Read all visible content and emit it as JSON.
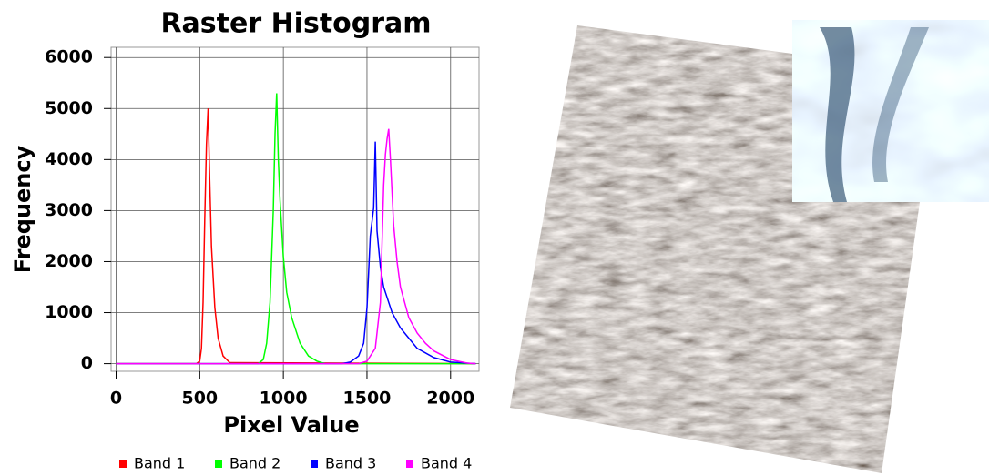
{
  "chart_data": {
    "type": "line",
    "title": "Raster Histogram",
    "x_label": "Pixel Value",
    "y_label": "Frequency",
    "xlim": [
      -30,
      2170
    ],
    "ylim": [
      -150,
      6200
    ],
    "xticks": [
      0,
      500,
      1000,
      1500,
      2000
    ],
    "yticks": [
      0,
      1000,
      2000,
      3000,
      4000,
      5000,
      6000
    ],
    "grid": true,
    "legend": "bottom",
    "series": [
      {
        "name": "Band 1",
        "color": "#ff0000",
        "x": [
          0,
          480,
          500,
          510,
          520,
          530,
          540,
          550,
          560,
          570,
          590,
          610,
          640,
          680,
          2150
        ],
        "values": [
          0,
          0,
          50,
          300,
          1200,
          2800,
          4300,
          5000,
          3600,
          2300,
          1100,
          500,
          150,
          20,
          0
        ]
      },
      {
        "name": "Band 2",
        "color": "#00ff00",
        "x": [
          0,
          850,
          880,
          900,
          920,
          940,
          950,
          960,
          970,
          980,
          1000,
          1020,
          1050,
          1100,
          1150,
          1200,
          1250,
          2150
        ],
        "values": [
          0,
          0,
          80,
          400,
          1200,
          3000,
          4500,
          5300,
          4000,
          3200,
          2100,
          1400,
          900,
          400,
          150,
          50,
          0,
          0
        ]
      },
      {
        "name": "Band 3",
        "color": "#0000ff",
        "x": [
          0,
          1350,
          1400,
          1450,
          1480,
          1500,
          1520,
          1540,
          1550,
          1560,
          1580,
          1600,
          1650,
          1700,
          1750,
          1800,
          1900,
          2000,
          2150
        ],
        "values": [
          0,
          0,
          30,
          150,
          400,
          1100,
          2500,
          3050,
          4350,
          2600,
          1900,
          1500,
          1000,
          700,
          500,
          300,
          120,
          30,
          0
        ]
      },
      {
        "name": "Band 4",
        "color": "#ff00ff",
        "x": [
          0,
          1450,
          1500,
          1550,
          1580,
          1600,
          1610,
          1620,
          1630,
          1640,
          1660,
          1680,
          1700,
          1750,
          1800,
          1850,
          1900,
          2000,
          2100,
          2150
        ],
        "values": [
          0,
          0,
          50,
          300,
          1200,
          3500,
          4100,
          4400,
          4600,
          4000,
          2700,
          2000,
          1500,
          900,
          600,
          400,
          250,
          80,
          10,
          0
        ]
      }
    ]
  }
}
